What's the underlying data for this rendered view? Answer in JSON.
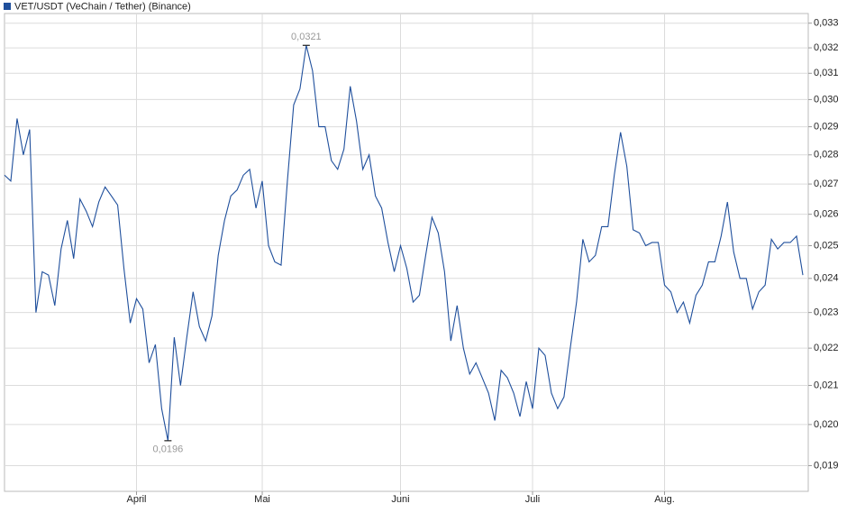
{
  "chart_data": {
    "type": "line",
    "title": "VET/USDT (VeChain / Tether) (Binance)",
    "log_scale": true,
    "grid": true,
    "legend": "top-left",
    "categories": [
      null,
      null,
      null,
      null,
      null,
      null,
      null,
      null,
      null,
      null,
      null,
      null,
      null,
      null,
      null,
      null,
      null,
      null,
      null,
      null,
      null,
      "April",
      null,
      null,
      null,
      null,
      null,
      null,
      null,
      null,
      null,
      null,
      null,
      null,
      null,
      null,
      null,
      null,
      null,
      null,
      null,
      "Mai",
      null,
      null,
      null,
      null,
      null,
      null,
      null,
      null,
      null,
      null,
      null,
      null,
      null,
      null,
      null,
      null,
      null,
      null,
      null,
      null,
      null,
      "Juni",
      null,
      null,
      null,
      null,
      null,
      null,
      null,
      null,
      null,
      null,
      null,
      null,
      null,
      null,
      null,
      null,
      null,
      null,
      null,
      null,
      "Juli",
      null,
      null,
      null,
      null,
      null,
      null,
      null,
      null,
      null,
      null,
      null,
      null,
      null,
      null,
      null,
      null,
      null,
      null,
      null,
      null,
      "Aug.",
      null,
      null,
      null,
      null,
      null,
      null,
      null,
      null,
      null,
      null,
      null,
      null,
      null,
      null,
      null,
      null,
      null,
      null,
      null,
      null,
      null,
      null
    ],
    "series": [
      {
        "name": "VET/USDT (VeChain / Tether) (Binance)",
        "color": "#1f4f9c",
        "values": [
          0.0273,
          0.0271,
          0.0293,
          0.028,
          0.0289,
          0.023,
          0.0242,
          0.0241,
          0.0232,
          0.0249,
          0.0258,
          0.0246,
          0.0265,
          0.0261,
          0.0256,
          0.0264,
          0.0269,
          0.0266,
          0.0263,
          0.0243,
          0.0227,
          0.0234,
          0.0231,
          0.0216,
          0.0221,
          0.0204,
          0.0196,
          0.0223,
          0.021,
          0.0223,
          0.0236,
          0.0226,
          0.0222,
          0.0229,
          0.0247,
          0.0258,
          0.0266,
          0.0268,
          0.0273,
          0.0275,
          0.0262,
          0.0271,
          0.025,
          0.0245,
          0.0244,
          0.0271,
          0.0298,
          0.0304,
          0.0321,
          0.0311,
          0.029,
          0.029,
          0.0278,
          0.0275,
          0.0282,
          0.0305,
          0.0292,
          0.0275,
          0.028,
          0.0266,
          0.0262,
          0.0251,
          0.0242,
          0.025,
          0.0243,
          0.0233,
          0.0235,
          0.0247,
          0.0259,
          0.0254,
          0.0242,
          0.0222,
          0.0232,
          0.022,
          0.0213,
          0.0216,
          0.0212,
          0.0208,
          0.0201,
          0.0214,
          0.0212,
          0.0208,
          0.0202,
          0.0211,
          0.0204,
          0.022,
          0.0218,
          0.0208,
          0.0204,
          0.0207,
          0.022,
          0.0233,
          0.0252,
          0.0245,
          0.0247,
          0.0256,
          0.0256,
          0.0273,
          0.0288,
          0.0276,
          0.0255,
          0.0254,
          0.025,
          0.0251,
          0.0251,
          0.0238,
          0.0236,
          0.023,
          0.0233,
          0.0227,
          0.0235,
          0.0238,
          0.0245,
          0.0245,
          0.0253,
          0.0264,
          0.0248,
          0.024,
          0.024,
          0.0231,
          0.0236,
          0.0238,
          0.0252,
          0.0249,
          0.0251,
          0.0251,
          0.0253,
          0.0241
        ]
      }
    ],
    "annotations": [
      {
        "text": "0,0321",
        "value": 0.0321
      },
      {
        "text": "0,0196",
        "value": 0.0196
      }
    ],
    "ylim": [
      0.0184,
      0.0334
    ],
    "yticks": [
      {
        "value": 0.019,
        "label": "0,019"
      },
      {
        "value": 0.02,
        "label": "0,020"
      },
      {
        "value": 0.021,
        "label": "0,021"
      },
      {
        "value": 0.022,
        "label": "0,022"
      },
      {
        "value": 0.023,
        "label": "0,023"
      },
      {
        "value": 0.024,
        "label": "0,024"
      },
      {
        "value": 0.025,
        "label": "0,025"
      },
      {
        "value": 0.026,
        "label": "0,026"
      },
      {
        "value": 0.027,
        "label": "0,027"
      },
      {
        "value": 0.028,
        "label": "0,028"
      },
      {
        "value": 0.029,
        "label": "0,029"
      },
      {
        "value": 0.03,
        "label": "0,030"
      },
      {
        "value": 0.031,
        "label": "0,031"
      },
      {
        "value": 0.032,
        "label": "0,032"
      },
      {
        "value": 0.033,
        "label": "0,033"
      }
    ]
  }
}
